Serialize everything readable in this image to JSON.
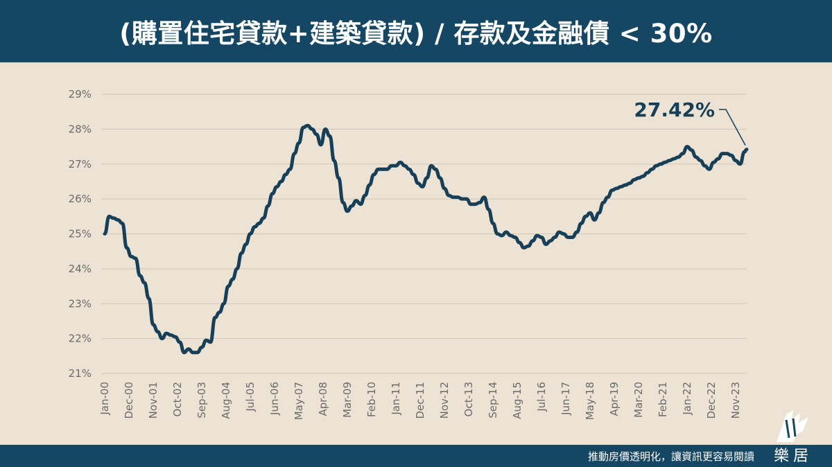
{
  "header": {
    "title": "(購置住宅貸款+建築貸款) / 存款及金融債 < 30%"
  },
  "footer": {
    "slogan": "推動房價透明化，讓資訊更容易閱讀"
  },
  "logo": {
    "text": "樂居"
  },
  "colors": {
    "header_bg": "#154764",
    "background": "#ece3d4",
    "line": "#173f58",
    "grid": "#cfc7b8",
    "tick_text": "#6a6a6a"
  },
  "chart_data": {
    "type": "line",
    "title": "",
    "xlabel": "",
    "ylabel": "",
    "ylim": [
      21,
      29
    ],
    "yticks": [
      "21%",
      "22%",
      "23%",
      "24%",
      "25%",
      "26%",
      "27%",
      "28%",
      "29%"
    ],
    "grid": true,
    "x_tick_labels": [
      "Jan-00",
      "Dec-00",
      "Nov-01",
      "Oct-02",
      "Sep-03",
      "Aug-04",
      "Jul-05",
      "Jun-06",
      "May-07",
      "Apr-08",
      "Mar-09",
      "Feb-10",
      "Jan-11",
      "Dec-11",
      "Nov-12",
      "Oct-13",
      "Sep-14",
      "Aug-15",
      "Jul-16",
      "Jun-17",
      "May-18",
      "Apr-19",
      "Mar-20",
      "Feb-21",
      "Jan-22",
      "Dec-22",
      "Nov-23"
    ],
    "annotation": {
      "text": "27.42%",
      "date": "2024-04",
      "value": 27.42
    },
    "series": [
      {
        "name": "",
        "points": [
          [
            "2000-01",
            25.0
          ],
          [
            "2000-03",
            25.5
          ],
          [
            "2000-05",
            25.45
          ],
          [
            "2000-07",
            25.4
          ],
          [
            "2000-09",
            25.3
          ],
          [
            "2000-11",
            24.6
          ],
          [
            "2001-01",
            24.35
          ],
          [
            "2001-03",
            24.3
          ],
          [
            "2001-05",
            23.8
          ],
          [
            "2001-07",
            23.6
          ],
          [
            "2001-09",
            23.15
          ],
          [
            "2001-11",
            22.4
          ],
          [
            "2002-01",
            22.2
          ],
          [
            "2002-03",
            22.0
          ],
          [
            "2002-05",
            22.15
          ],
          [
            "2002-07",
            22.1
          ],
          [
            "2002-09",
            22.05
          ],
          [
            "2002-11",
            21.9
          ],
          [
            "2003-01",
            21.6
          ],
          [
            "2003-03",
            21.7
          ],
          [
            "2003-05",
            21.6
          ],
          [
            "2003-07",
            21.6
          ],
          [
            "2003-09",
            21.75
          ],
          [
            "2003-11",
            21.95
          ],
          [
            "2004-01",
            21.9
          ],
          [
            "2004-03",
            22.6
          ],
          [
            "2004-05",
            22.75
          ],
          [
            "2004-07",
            23.0
          ],
          [
            "2004-09",
            23.5
          ],
          [
            "2004-11",
            23.7
          ],
          [
            "2005-01",
            24.0
          ],
          [
            "2005-03",
            24.45
          ],
          [
            "2005-05",
            24.7
          ],
          [
            "2005-07",
            25.0
          ],
          [
            "2005-09",
            25.2
          ],
          [
            "2005-11",
            25.3
          ],
          [
            "2006-01",
            25.45
          ],
          [
            "2006-03",
            25.8
          ],
          [
            "2006-05",
            26.15
          ],
          [
            "2006-07",
            26.35
          ],
          [
            "2006-09",
            26.5
          ],
          [
            "2006-11",
            26.7
          ],
          [
            "2007-01",
            26.85
          ],
          [
            "2007-03",
            27.3
          ],
          [
            "2007-05",
            27.6
          ],
          [
            "2007-07",
            28.05
          ],
          [
            "2007-09",
            28.1
          ],
          [
            "2007-11",
            28.0
          ],
          [
            "2008-01",
            27.85
          ],
          [
            "2008-03",
            27.55
          ],
          [
            "2008-05",
            28.0
          ],
          [
            "2008-07",
            27.8
          ],
          [
            "2008-09",
            27.1
          ],
          [
            "2008-11",
            26.6
          ],
          [
            "2009-01",
            25.9
          ],
          [
            "2009-03",
            25.65
          ],
          [
            "2009-05",
            25.8
          ],
          [
            "2009-07",
            25.95
          ],
          [
            "2009-09",
            25.85
          ],
          [
            "2009-11",
            26.1
          ],
          [
            "2010-01",
            26.4
          ],
          [
            "2010-03",
            26.7
          ],
          [
            "2010-05",
            26.85
          ],
          [
            "2010-07",
            26.85
          ],
          [
            "2010-09",
            26.85
          ],
          [
            "2010-11",
            26.95
          ],
          [
            "2011-01",
            26.95
          ],
          [
            "2011-03",
            27.05
          ],
          [
            "2011-05",
            26.95
          ],
          [
            "2011-07",
            26.85
          ],
          [
            "2011-09",
            26.7
          ],
          [
            "2011-11",
            26.45
          ],
          [
            "2012-01",
            26.35
          ],
          [
            "2012-03",
            26.6
          ],
          [
            "2012-05",
            26.95
          ],
          [
            "2012-07",
            26.85
          ],
          [
            "2012-09",
            26.6
          ],
          [
            "2012-11",
            26.3
          ],
          [
            "2013-01",
            26.1
          ],
          [
            "2013-03",
            26.05
          ],
          [
            "2013-05",
            26.05
          ],
          [
            "2013-07",
            26.0
          ],
          [
            "2013-09",
            26.0
          ],
          [
            "2013-11",
            25.85
          ],
          [
            "2014-01",
            25.85
          ],
          [
            "2014-03",
            25.9
          ],
          [
            "2014-05",
            26.05
          ],
          [
            "2014-07",
            25.7
          ],
          [
            "2014-09",
            25.3
          ],
          [
            "2014-11",
            25.0
          ],
          [
            "2015-01",
            24.95
          ],
          [
            "2015-03",
            25.05
          ],
          [
            "2015-05",
            24.95
          ],
          [
            "2015-07",
            24.9
          ],
          [
            "2015-09",
            24.75
          ],
          [
            "2015-11",
            24.6
          ],
          [
            "2016-01",
            24.65
          ],
          [
            "2016-03",
            24.8
          ],
          [
            "2016-05",
            24.95
          ],
          [
            "2016-07",
            24.9
          ],
          [
            "2016-09",
            24.7
          ],
          [
            "2016-11",
            24.8
          ],
          [
            "2017-01",
            24.9
          ],
          [
            "2017-03",
            25.05
          ],
          [
            "2017-05",
            25.0
          ],
          [
            "2017-07",
            24.9
          ],
          [
            "2017-09",
            24.9
          ],
          [
            "2017-11",
            25.05
          ],
          [
            "2018-01",
            25.3
          ],
          [
            "2018-03",
            25.5
          ],
          [
            "2018-05",
            25.6
          ],
          [
            "2018-07",
            25.4
          ],
          [
            "2018-09",
            25.6
          ],
          [
            "2018-11",
            25.9
          ],
          [
            "2019-01",
            26.05
          ],
          [
            "2019-03",
            26.25
          ],
          [
            "2019-05",
            26.3
          ],
          [
            "2019-07",
            26.35
          ],
          [
            "2019-09",
            26.4
          ],
          [
            "2019-11",
            26.45
          ],
          [
            "2020-01",
            26.55
          ],
          [
            "2020-03",
            26.6
          ],
          [
            "2020-05",
            26.65
          ],
          [
            "2020-07",
            26.75
          ],
          [
            "2020-09",
            26.85
          ],
          [
            "2020-11",
            26.95
          ],
          [
            "2021-01",
            27.0
          ],
          [
            "2021-03",
            27.05
          ],
          [
            "2021-05",
            27.1
          ],
          [
            "2021-07",
            27.15
          ],
          [
            "2021-09",
            27.2
          ],
          [
            "2021-11",
            27.3
          ],
          [
            "2022-01",
            27.5
          ],
          [
            "2022-03",
            27.4
          ],
          [
            "2022-05",
            27.2
          ],
          [
            "2022-07",
            27.1
          ],
          [
            "2022-09",
            26.95
          ],
          [
            "2022-11",
            26.85
          ],
          [
            "2023-01",
            27.05
          ],
          [
            "2023-03",
            27.15
          ],
          [
            "2023-05",
            27.3
          ],
          [
            "2023-07",
            27.3
          ],
          [
            "2023-09",
            27.25
          ],
          [
            "2023-11",
            27.1
          ],
          [
            "2024-01",
            27.0
          ],
          [
            "2024-03",
            27.35
          ],
          [
            "2024-04",
            27.42
          ]
        ]
      }
    ]
  }
}
